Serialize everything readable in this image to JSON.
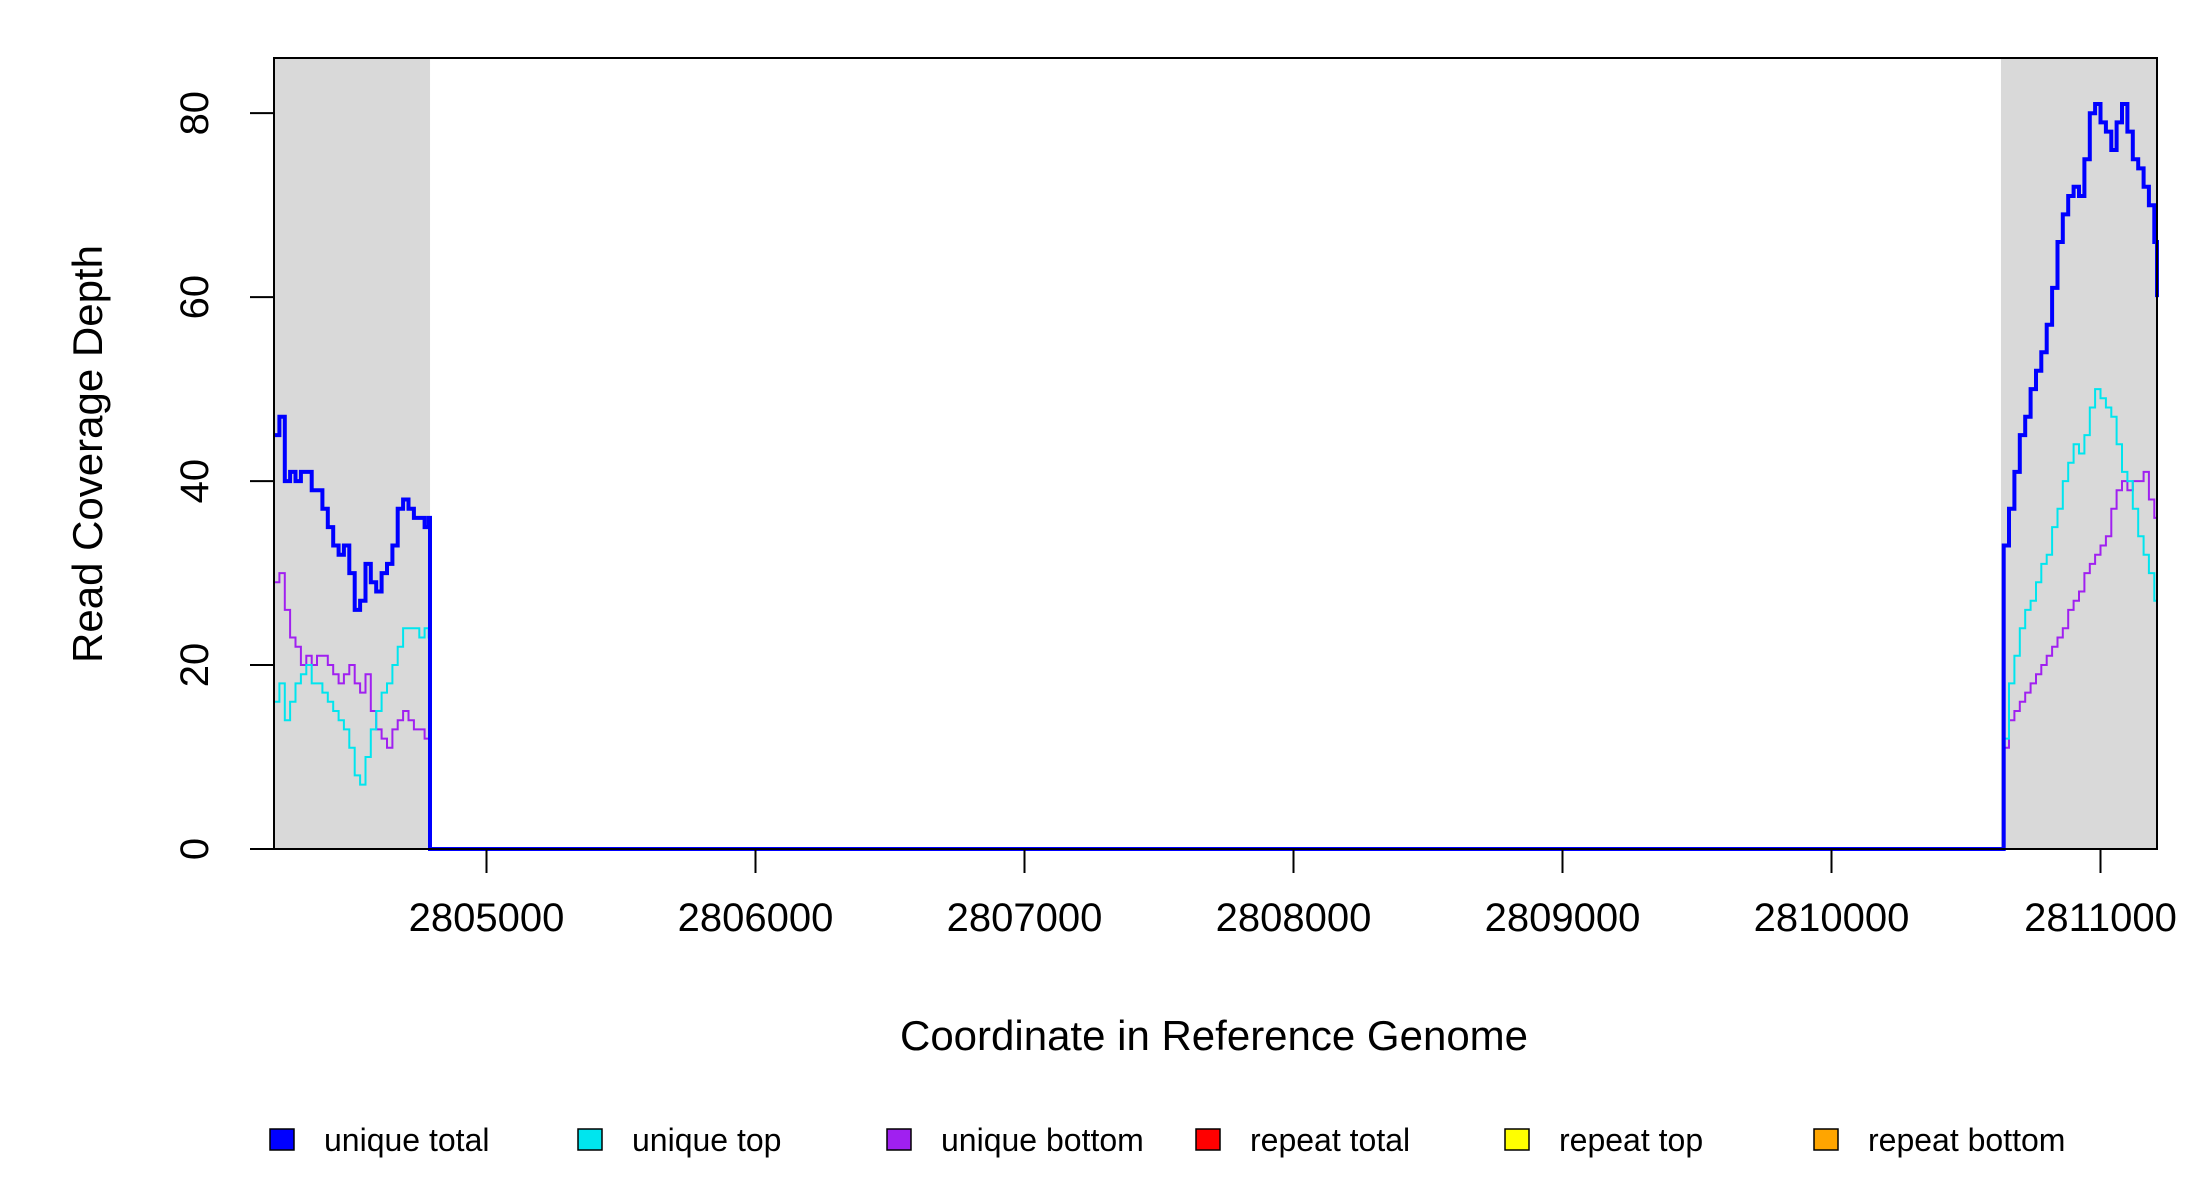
{
  "chart_data": {
    "type": "line",
    "xlabel": "Coordinate in Reference Genome",
    "ylabel": "Read Coverage Depth",
    "xlim": [
      2804210,
      2811210
    ],
    "ylim": [
      0,
      86
    ],
    "x_ticks": [
      2805000,
      2806000,
      2807000,
      2808000,
      2809000,
      2810000,
      2811000
    ],
    "x_tick_labels": [
      "2805000",
      "2806000",
      "2807000",
      "2808000",
      "2809000",
      "2810000",
      "2811000"
    ],
    "y_ticks": [
      0,
      20,
      40,
      60,
      80
    ],
    "y_tick_labels": [
      "0",
      "20",
      "40",
      "60",
      "80"
    ],
    "grid": false,
    "legend_position": "bottom",
    "shaded_regions": [
      {
        "x_start": 2804210,
        "x_end": 2804790,
        "color": "#d9d9d9"
      },
      {
        "x_start": 2810630,
        "x_end": 2811210,
        "color": "#d9d9d9"
      }
    ],
    "series": [
      {
        "name": "unique total",
        "color": "#0000ff",
        "width": 4,
        "x": [
          2804210,
          2804230,
          2804250,
          2804270,
          2804290,
          2804310,
          2804330,
          2804350,
          2804370,
          2804390,
          2804410,
          2804430,
          2804450,
          2804470,
          2804490,
          2804510,
          2804530,
          2804550,
          2804570,
          2804590,
          2804610,
          2804630,
          2804650,
          2804670,
          2804690,
          2804710,
          2804730,
          2804750,
          2804770,
          2804785,
          2804790,
          2810630,
          2810640,
          2810660,
          2810680,
          2810700,
          2810720,
          2810740,
          2810760,
          2810780,
          2810800,
          2810820,
          2810840,
          2810860,
          2810880,
          2810900,
          2810920,
          2810940,
          2810960,
          2810980,
          2811000,
          2811020,
          2811040,
          2811060,
          2811080,
          2811100,
          2811120,
          2811140,
          2811160,
          2811180,
          2811200,
          2811210
        ],
        "y": [
          45,
          47,
          40,
          41,
          40,
          41,
          41,
          39,
          39,
          37,
          35,
          33,
          32,
          33,
          30,
          26,
          27,
          31,
          29,
          28,
          30,
          31,
          33,
          37,
          38,
          37,
          36,
          36,
          35,
          36,
          0,
          0,
          33,
          37,
          41,
          45,
          47,
          50,
          52,
          54,
          57,
          61,
          66,
          69,
          71,
          72,
          71,
          75,
          80,
          81,
          79,
          78,
          76,
          79,
          81,
          78,
          75,
          74,
          72,
          70,
          66,
          60
        ]
      },
      {
        "name": "unique top",
        "color": "#00e5ee",
        "width": 2,
        "x": [
          2804210,
          2804230,
          2804250,
          2804270,
          2804290,
          2804310,
          2804330,
          2804350,
          2804370,
          2804390,
          2804410,
          2804430,
          2804450,
          2804470,
          2804490,
          2804510,
          2804530,
          2804550,
          2804570,
          2804590,
          2804610,
          2804630,
          2804650,
          2804670,
          2804690,
          2804710,
          2804730,
          2804750,
          2804770,
          2804785,
          2804790,
          2810630,
          2810640,
          2810660,
          2810680,
          2810700,
          2810720,
          2810740,
          2810760,
          2810780,
          2810800,
          2810820,
          2810840,
          2810860,
          2810880,
          2810900,
          2810920,
          2810940,
          2810960,
          2810980,
          2811000,
          2811020,
          2811040,
          2811060,
          2811080,
          2811100,
          2811120,
          2811140,
          2811160,
          2811180,
          2811200,
          2811210
        ],
        "y": [
          16,
          18,
          14,
          16,
          18,
          19,
          20,
          18,
          18,
          17,
          16,
          15,
          14,
          13,
          11,
          8,
          7,
          10,
          13,
          15,
          17,
          18,
          20,
          22,
          24,
          24,
          24,
          23,
          24,
          23,
          0,
          0,
          12,
          18,
          21,
          24,
          26,
          27,
          29,
          31,
          32,
          35,
          37,
          40,
          42,
          44,
          43,
          45,
          48,
          50,
          49,
          48,
          47,
          44,
          41,
          40,
          37,
          34,
          32,
          30,
          27,
          24
        ]
      },
      {
        "name": "unique bottom",
        "color": "#a020f0",
        "width": 2,
        "x": [
          2804210,
          2804230,
          2804250,
          2804270,
          2804290,
          2804310,
          2804330,
          2804350,
          2804370,
          2804390,
          2804410,
          2804430,
          2804450,
          2804470,
          2804490,
          2804510,
          2804530,
          2804550,
          2804570,
          2804590,
          2804610,
          2804630,
          2804650,
          2804670,
          2804690,
          2804710,
          2804730,
          2804750,
          2804770,
          2804785,
          2804790,
          2810630,
          2810640,
          2810660,
          2810680,
          2810700,
          2810720,
          2810740,
          2810760,
          2810780,
          2810800,
          2810820,
          2810840,
          2810860,
          2810880,
          2810900,
          2810920,
          2810940,
          2810960,
          2810980,
          2811000,
          2811020,
          2811040,
          2811060,
          2811080,
          2811100,
          2811120,
          2811140,
          2811160,
          2811180,
          2811200,
          2811210
        ],
        "y": [
          29,
          30,
          26,
          23,
          22,
          20,
          21,
          20,
          21,
          21,
          20,
          19,
          18,
          19,
          20,
          18,
          17,
          19,
          15,
          13,
          12,
          11,
          13,
          14,
          15,
          14,
          13,
          13,
          12,
          12,
          0,
          0,
          11,
          14,
          15,
          16,
          17,
          18,
          19,
          20,
          21,
          22,
          23,
          24,
          26,
          27,
          28,
          30,
          31,
          32,
          33,
          34,
          37,
          39,
          40,
          39,
          40,
          40,
          41,
          38,
          36,
          35
        ]
      },
      {
        "name": "repeat total",
        "color": "#ff0000",
        "width": 2,
        "x": [
          2804210,
          2811210
        ],
        "y": [
          0,
          0
        ]
      },
      {
        "name": "repeat top",
        "color": "#ffff00",
        "width": 2,
        "x": [
          2804210,
          2811210
        ],
        "y": [
          0,
          0
        ]
      },
      {
        "name": "repeat bottom",
        "color": "#ffa500",
        "width": 2,
        "x": [
          2804210,
          2811210
        ],
        "y": [
          0,
          0
        ]
      }
    ]
  },
  "legend": [
    {
      "label": "unique total",
      "color": "#0000ff"
    },
    {
      "label": "unique top",
      "color": "#00e5ee"
    },
    {
      "label": "unique bottom",
      "color": "#a020f0"
    },
    {
      "label": "repeat total",
      "color": "#ff0000"
    },
    {
      "label": "repeat top",
      "color": "#ffff00"
    },
    {
      "label": "repeat bottom",
      "color": "#ffa500"
    }
  ]
}
